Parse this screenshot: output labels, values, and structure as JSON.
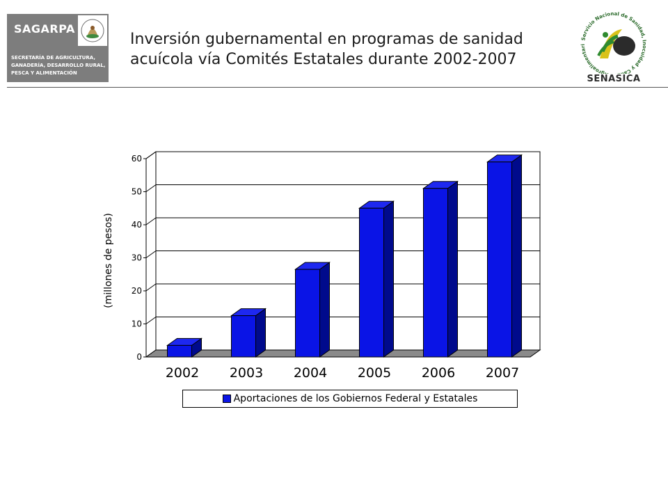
{
  "header": {
    "logo_left": {
      "brand": "SAGARPA",
      "secretariat": "SECRETARÍA DE AGRICULTURA,\nGANADERÍA, DESARROLLO RURAL,\nPESCA Y ALIMENTACIÓN"
    },
    "title_line1": "Inversión gubernamental en programas de sanidad",
    "title_line2": "acuícola vía Comités Estatales durante 2002-2007",
    "logo_right": {
      "name": "SENASICA",
      "ring_text": "Servicio Nacional de Sanidad, Inocuidad y Calidad Agroalimentaria"
    }
  },
  "colors": {
    "bar_front": "#0a14e6",
    "bar_side": "#000a8c",
    "bar_top": "#1e28f0",
    "floor": "#8a8a8a",
    "logo_gray": "#7d7d7d"
  },
  "chart_data": {
    "type": "bar",
    "categories": [
      "2002",
      "2003",
      "2004",
      "2005",
      "2006",
      "2007"
    ],
    "series": [
      {
        "name": "Aportaciones de los Gobiernos Federal y Estatales",
        "values": [
          3.5,
          12.5,
          26.5,
          45,
          51,
          59
        ]
      }
    ],
    "xlabel": "",
    "ylabel": "(millones de pesos)",
    "ylim": [
      0,
      60
    ],
    "yticks": [
      0,
      10,
      20,
      30,
      40,
      50,
      60
    ],
    "grid": true,
    "legend_position": "bottom",
    "style": "3d"
  }
}
